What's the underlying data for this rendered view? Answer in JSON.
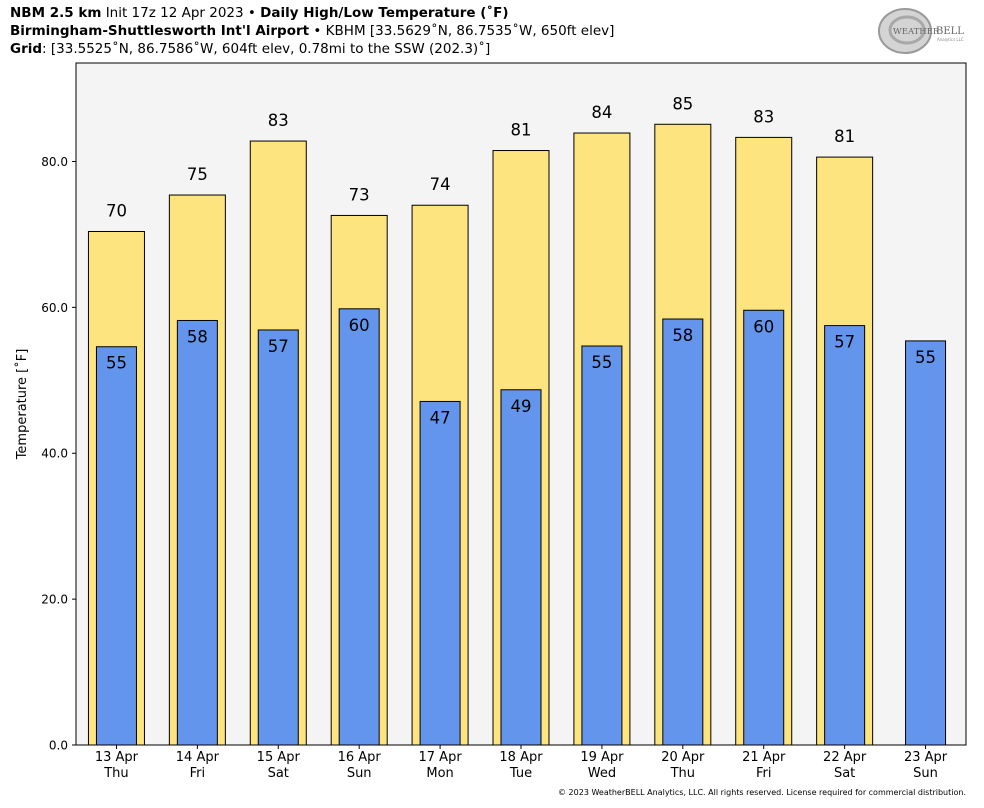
{
  "header": {
    "line1": {
      "model": "NBM 2.5 km",
      "init": "Init 17z 12 Apr 2023",
      "sep": "•",
      "product": "Daily High/Low Temperature (˚F)"
    },
    "line2": {
      "station": "Birmingham-Shuttlesworth Int'l Airport",
      "sep": "•",
      "details": "KBHM [33.5629˚N, 86.7535˚W, 650ft elev]"
    },
    "line3": {
      "label": "Grid",
      "details": ": [33.5525˚N, 86.7586˚W, 604ft elev, 0.78mi to the SSW (202.3)˚]"
    }
  },
  "logo": {
    "text_a": "WEATHER",
    "text_b": "BELL",
    "sub": "Analytics LLC"
  },
  "copyright": "© 2023 WeatherBELL Analytics, LLC. All rights reserved. License required for commercial distribution.",
  "colors": {
    "high": "#fde47f",
    "low": "#6495ed",
    "plot_bg": "#f4f4f4"
  },
  "chart_data": {
    "type": "bar",
    "ylabel": "Temperature [˚F]",
    "ylim": [
      0,
      93.5
    ],
    "yticks": [
      0.0,
      20.0,
      40.0,
      60.0,
      80.0
    ],
    "ytick_labels": [
      "0.0",
      "20.0",
      "40.0",
      "60.0",
      "80.0"
    ],
    "grid": false,
    "categories": [
      {
        "date": "13 Apr",
        "day": "Thu"
      },
      {
        "date": "14 Apr",
        "day": "Fri"
      },
      {
        "date": "15 Apr",
        "day": "Sat"
      },
      {
        "date": "16 Apr",
        "day": "Sun"
      },
      {
        "date": "17 Apr",
        "day": "Mon"
      },
      {
        "date": "18 Apr",
        "day": "Tue"
      },
      {
        "date": "19 Apr",
        "day": "Wed"
      },
      {
        "date": "20 Apr",
        "day": "Thu"
      },
      {
        "date": "21 Apr",
        "day": "Fri"
      },
      {
        "date": "22 Apr",
        "day": "Sat"
      },
      {
        "date": "23 Apr",
        "day": "Sun"
      }
    ],
    "series": [
      {
        "key": "high",
        "values": [
          70.4,
          75.4,
          82.8,
          72.6,
          74.0,
          81.5,
          83.9,
          85.1,
          83.3,
          80.6,
          null
        ],
        "labels": [
          "70",
          "75",
          "83",
          "73",
          "74",
          "81",
          "84",
          "85",
          "83",
          "81",
          ""
        ]
      },
      {
        "key": "low",
        "values": [
          54.6,
          58.2,
          56.9,
          59.8,
          47.1,
          48.7,
          54.7,
          58.4,
          59.6,
          57.5,
          55.4
        ],
        "labels": [
          "55",
          "58",
          "57",
          "60",
          "47",
          "49",
          "55",
          "58",
          "60",
          "57",
          "55"
        ]
      }
    ]
  }
}
